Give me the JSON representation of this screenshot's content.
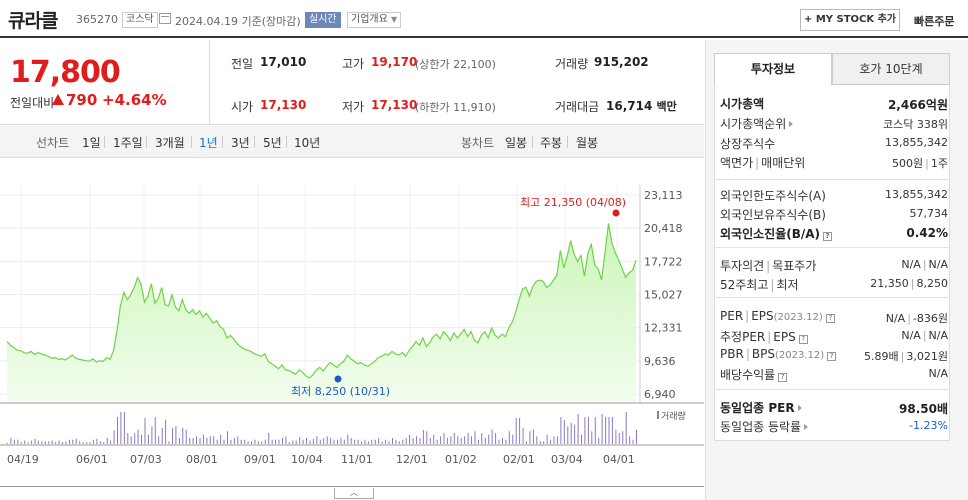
{
  "header": {
    "name": "큐라클",
    "code": "365270",
    "market": "코스닥",
    "date": "2024.04.19",
    "basis": "기준(장마감)",
    "realtime_label": "실시간",
    "company_label": "기업개요",
    "mystock_label": "+ MY STOCK 추가",
    "quick_order_label": "빠른주문"
  },
  "price": {
    "current": "17,800",
    "change_label": "전일대비",
    "change": "790",
    "change_pct": "+4.64%",
    "prev_close_label": "전일",
    "prev_close": "17,010",
    "high_label": "고가",
    "high": "19,170",
    "upper_limit": "(상한가 22,100)",
    "volume_label": "거래량",
    "volume": "915,202",
    "open_label": "시가",
    "open": "17,130",
    "low_label": "저가",
    "low": "17,130",
    "lower_limit": "(하한가 11,910)",
    "amount_label": "거래대금",
    "amount": "16,714",
    "amount_unit": "백만"
  },
  "period_tabs": {
    "line_label": "선차트",
    "items": [
      "1일",
      "1주일",
      "3개월",
      "1년",
      "3년",
      "5년",
      "10년"
    ],
    "active": "1년",
    "candle_label": "봉차트",
    "candle_items": [
      "일봉",
      "주봉",
      "월봉"
    ]
  },
  "chart_data": {
    "type": "area",
    "y_ticks": [
      "23,113",
      "20,418",
      "17,722",
      "15,027",
      "12,331",
      "9,636",
      "6,940"
    ],
    "ylim": [
      6940,
      23113
    ],
    "x_ticks": [
      "04/19",
      "06/01",
      "07/03",
      "08/01",
      "09/01",
      "10/04",
      "11/01",
      "12/01",
      "01/02",
      "02/01",
      "03/04",
      "04/01"
    ],
    "max_annotation": "최고 21,350 (04/08)",
    "min_annotation": "최저 8,250 (10/31)",
    "volume_label": "거래량",
    "series": [
      {
        "values": [
          11200,
          10900,
          10700,
          10500,
          10450,
          10300,
          10250,
          10400,
          10150,
          10300,
          10200,
          10100,
          10000,
          9850,
          9900,
          9750,
          9800,
          9700,
          9900,
          10100,
          9850,
          9750,
          9700,
          9650,
          9600,
          9800,
          9550,
          9650,
          9600,
          9900,
          9750,
          10500,
          12100,
          14100,
          15200,
          14600,
          15000,
          15600,
          16400,
          15900,
          14400,
          14900,
          15900,
          14300,
          14700,
          15600,
          14200,
          14100,
          15000,
          14000,
          13700,
          14600,
          13800,
          13500,
          13800,
          13400,
          13700,
          13200,
          13500,
          13100,
          12700,
          12900,
          12400,
          12200,
          11500,
          11700,
          11400,
          11000,
          10800,
          10600,
          10500,
          10400,
          10200,
          10100,
          10000,
          10200,
          9600,
          9400,
          9200,
          9000,
          9300,
          8900,
          8850,
          8700,
          8550,
          8900,
          8700,
          8400,
          8250,
          8500,
          8900,
          9100,
          8800,
          9200,
          9500,
          9300,
          9100,
          9400,
          9600,
          10100,
          9800,
          9600,
          9400,
          9500,
          9300,
          9200,
          9400,
          9600,
          9900,
          10000,
          10200,
          10100,
          10400,
          10200,
          10100,
          10300,
          10000,
          10500,
          10800,
          11200,
          10900,
          11500,
          10800,
          11100,
          11600,
          11800,
          11400,
          12000,
          11700,
          11300,
          11900,
          11500,
          11800,
          12200,
          11600,
          12000,
          11300,
          11100,
          11700,
          12000,
          11500,
          12300,
          11700,
          11500,
          11800,
          11600,
          12300,
          12800,
          13600,
          14600,
          15500,
          15600,
          14900,
          15700,
          16100,
          16200,
          16100,
          15600,
          15800,
          16200,
          16600,
          18600,
          17200,
          18200,
          19400,
          18300,
          17700,
          18200,
          16500,
          18400,
          19100,
          17400,
          17100,
          16200,
          18500,
          20800,
          19200,
          18400,
          17800,
          17100,
          16400,
          16800,
          17000,
          17800
        ]
      }
    ]
  },
  "side": {
    "tab_invest": "투자정보",
    "tab_quotes": "호가 10단계",
    "market_cap_label": "시가총액",
    "market_cap": "2,466억원",
    "market_cap_rank_label": "시가총액순위",
    "market_cap_rank": "코스닥 338위",
    "shares_label": "상장주식수",
    "shares": "13,855,342",
    "face_label": "액면가",
    "trade_unit_label": "매매단위",
    "face_value": "500원",
    "trade_unit": "1주",
    "foreign_limit_label": "외국인한도주식수(A)",
    "foreign_limit": "13,855,342",
    "foreign_hold_label": "외국인보유주식수(B)",
    "foreign_hold": "57,734",
    "foreign_ratio_label": "외국인소진율(B/A)",
    "foreign_ratio": "0.42%",
    "opinion_label": "투자의견",
    "target_label": "목표주가",
    "opinion": "N/A",
    "target": "N/A",
    "week52_label": "52주최고",
    "week52_low_label": "최저",
    "week52_high": "21,350",
    "week52_low": "8,250",
    "per_label": "PER",
    "eps_label": "EPS",
    "eps_period": "(2023.12)",
    "per": "N/A",
    "eps": "-836원",
    "est_per_label": "추정PER",
    "est_eps_label": "EPS",
    "est_per": "N/A",
    "est_eps": "N/A",
    "pbr_label": "PBR",
    "bps_label": "BPS",
    "bps_period": "(2023.12)",
    "pbr": "5.89배",
    "bps": "3,021원",
    "dividend_label": "배당수익률",
    "dividend": "N/A",
    "industry_per_label": "동일업종 PER",
    "industry_per": "98.50배",
    "industry_chg_label": "동일업종 등락률",
    "industry_chg": "-1.23%"
  },
  "colors": {
    "up": "#e01c1c",
    "down": "#1a5dc7",
    "line": "#7ed957",
    "fill_top": "#c8f5b4",
    "volume": "#8a78c4"
  }
}
